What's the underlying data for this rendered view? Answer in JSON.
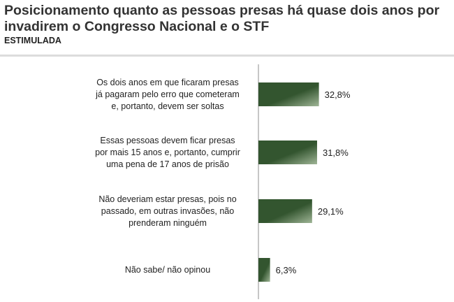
{
  "title": "Posicionamento quanto as pessoas presas há quase dois anos por invadirem o Congresso Nacional e o STF",
  "subtitle": "ESTIMULADA",
  "chart_data": {
    "type": "bar",
    "orientation": "horizontal",
    "categories": [
      [
        "Os dois anos em que ficaram presas",
        "já pagaram pelo erro que cometeram",
        "e, portanto, devem ser soltas"
      ],
      [
        "Essas pessoas devem ficar presas",
        "por mais 15 anos e, portanto, cumprir",
        "uma pena de 17 anos de prisão"
      ],
      [
        "Não deveriam estar presas, pois no",
        "passado, em outras invasões, não",
        "prenderam ninguém"
      ],
      [
        "Não sabe/ não opinou"
      ]
    ],
    "values": [
      32.8,
      31.8,
      29.1,
      6.3
    ],
    "value_labels": [
      "32,8%",
      "31,8%",
      "29,1%",
      "6,3%"
    ],
    "xlim": [
      0,
      100
    ],
    "grid": false,
    "colors": {
      "bar_dark": "#33552f",
      "bar_light": "#9fb596"
    }
  }
}
